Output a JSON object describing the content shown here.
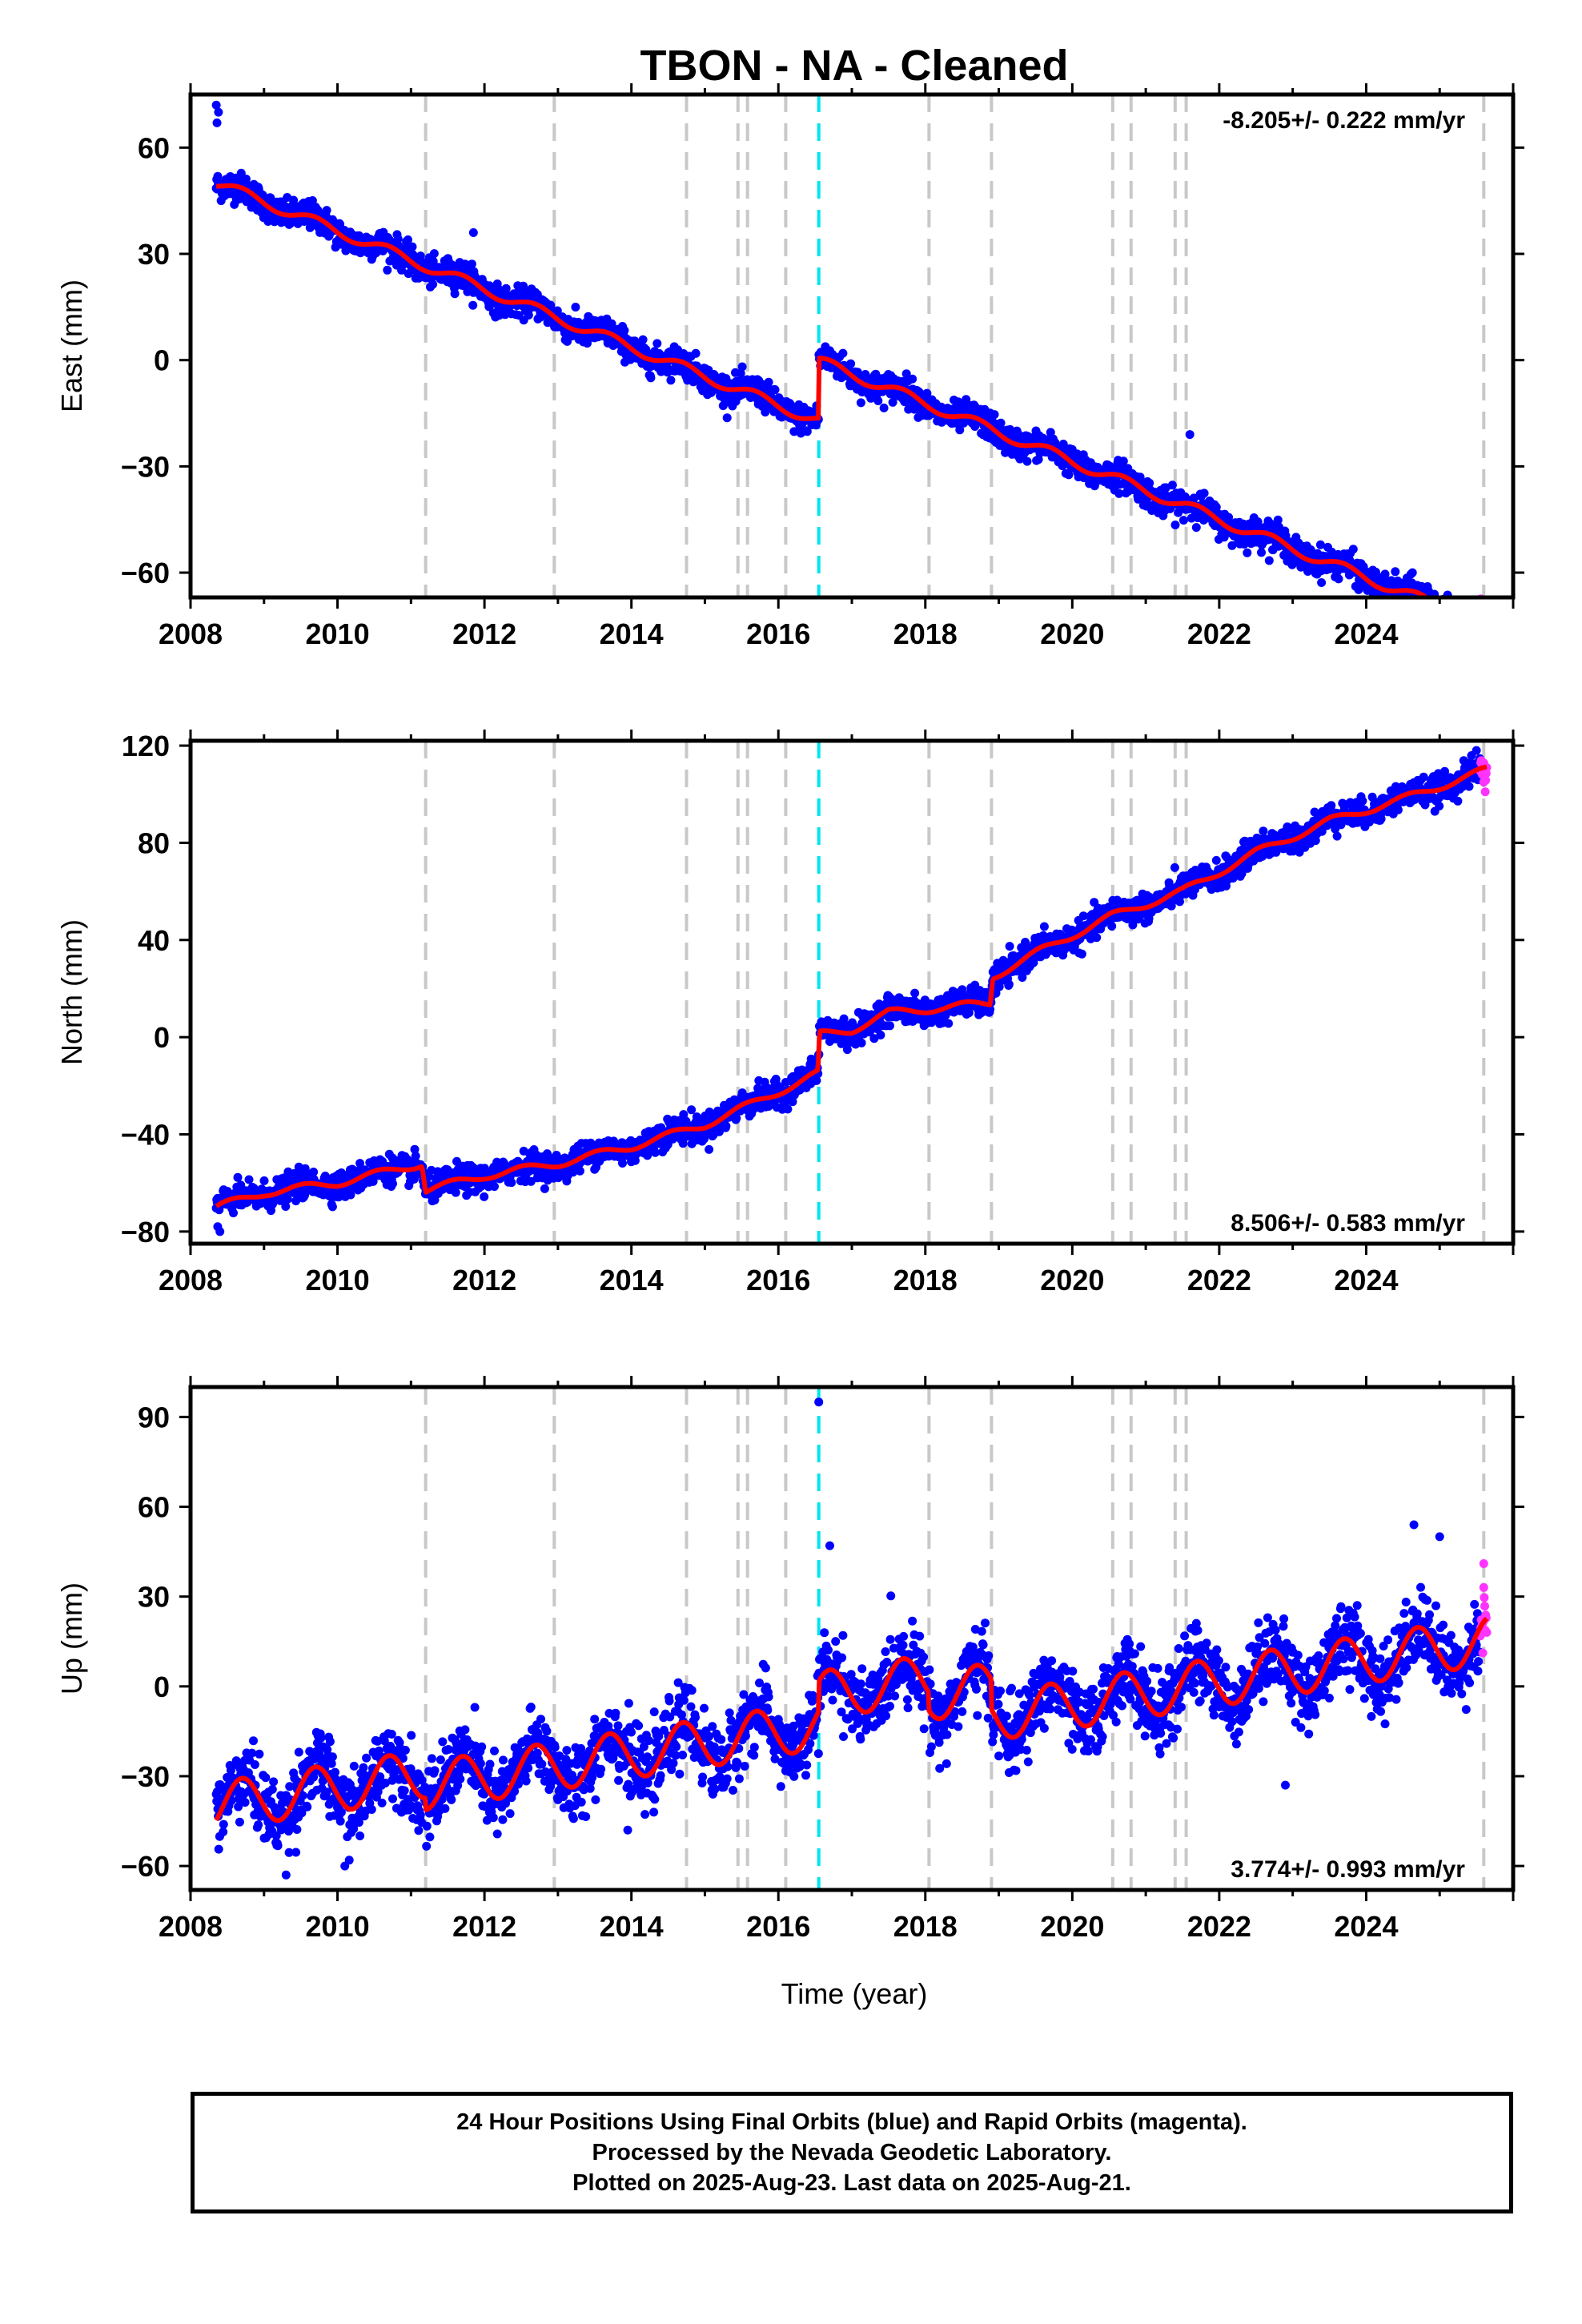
{
  "title": "TBON  - NA - Cleaned",
  "xlabel": "Time (year)",
  "footer": {
    "line1": "24 Hour Positions Using Final Orbits (blue) and Rapid Orbits (magenta).",
    "line2": "Processed by the Nevada Geodetic Laboratory.",
    "line3": "Plotted on 2025-Aug-23. Last data on 2025-Aug-21."
  },
  "colors": {
    "final_orbits": "#0000ff",
    "rapid_orbits": "#ff33ff",
    "model_fit": "#ff0000",
    "event_line": "#c8c8c8",
    "major_event_line": "#00e5ee"
  },
  "chart_data": [
    {
      "type": "scatter",
      "ylabel": "East (mm)",
      "rate_text": "-8.205+/- 0.222 mm/yr",
      "rate_position": "top-right",
      "xlim": [
        2008,
        2026
      ],
      "ylim": [
        -67,
        75
      ],
      "xticks": [
        2008,
        2010,
        2012,
        2014,
        2016,
        2018,
        2020,
        2022,
        2024
      ],
      "yticks": [
        -60,
        -30,
        0,
        30,
        60
      ],
      "grid": false,
      "start": 2008.35,
      "end": 2025.64,
      "trend": {
        "y0": 50,
        "rate": -8.205,
        "amplitude": 1.5,
        "offsets": [
          {
            "t": 2016.55,
            "dy": 17
          }
        ]
      },
      "noise": 2.0,
      "rapid_orbits_from": 2025.55,
      "outliers": [
        [
          2008.35,
          72
        ],
        [
          2008.38,
          70
        ],
        [
          2008.36,
          67
        ],
        [
          2011.85,
          36
        ],
        [
          2021.6,
          -21
        ]
      ],
      "event_lines": [
        2011.2,
        2012.95,
        2014.75,
        2015.45,
        2015.58,
        2016.1,
        2018.05,
        2018.9,
        2020.55,
        2020.8,
        2021.4,
        2021.55,
        2025.6
      ],
      "major_event": 2016.55
    },
    {
      "type": "scatter",
      "ylabel": "North (mm)",
      "rate_text": "8.506+/- 0.583 mm/yr",
      "rate_position": "bottom-right",
      "xlim": [
        2008,
        2026
      ],
      "ylim": [
        -85,
        122
      ],
      "xticks": [
        2008,
        2010,
        2012,
        2014,
        2016,
        2018,
        2020,
        2022,
        2024
      ],
      "yticks": [
        -80,
        -40,
        0,
        40,
        80,
        120
      ],
      "grid": false,
      "start": 2008.35,
      "end": 2025.64,
      "points": [
        [
          2008.35,
          -70
        ],
        [
          2009,
          -64
        ],
        [
          2010,
          -60
        ],
        [
          2011.15,
          -52
        ],
        [
          2011.2,
          -63
        ],
        [
          2012,
          -57
        ],
        [
          2013,
          -52
        ],
        [
          2014,
          -45
        ],
        [
          2015,
          -36
        ],
        [
          2015.6,
          -28
        ],
        [
          2016.54,
          -15
        ],
        [
          2016.56,
          1
        ],
        [
          2017,
          3
        ],
        [
          2017.5,
          10
        ],
        [
          2018.88,
          14
        ],
        [
          2018.92,
          25
        ],
        [
          2019.6,
          36
        ],
        [
          2020.55,
          50
        ],
        [
          2021.5,
          60
        ],
        [
          2022.5,
          76
        ],
        [
          2023.5,
          89
        ],
        [
          2024.5,
          98
        ],
        [
          2025.64,
          110
        ]
      ],
      "amplitude": 1.5,
      "noise": 2.8,
      "rapid_orbits_from": 2025.55,
      "outliers": [
        [
          2008.37,
          -78
        ],
        [
          2008.4,
          -80
        ],
        [
          2025.5,
          118
        ],
        [
          2025.62,
          101
        ],
        [
          2025.6,
          105
        ]
      ],
      "event_lines": [
        2011.2,
        2012.95,
        2014.75,
        2015.45,
        2015.58,
        2016.1,
        2018.05,
        2018.9,
        2020.55,
        2020.8,
        2021.4,
        2021.55,
        2025.6
      ],
      "major_event": 2016.55
    },
    {
      "type": "scatter",
      "ylabel": "Up (mm)",
      "rate_text": "3.774+/- 0.993 mm/yr",
      "rate_position": "bottom-right",
      "xlim": [
        2008,
        2026
      ],
      "ylim": [
        -68,
        100
      ],
      "xticks": [
        2008,
        2010,
        2012,
        2014,
        2016,
        2018,
        2020,
        2022,
        2024
      ],
      "yticks": [
        -60,
        -30,
        0,
        30,
        60,
        90
      ],
      "grid": false,
      "start": 2008.35,
      "end": 2025.64,
      "trend": {
        "y0": -40,
        "rate": 3.774,
        "amplitude": 8,
        "offsets": [
          {
            "t": 2011.2,
            "dy": -4
          },
          {
            "t": 2016.55,
            "dy": 10
          },
          {
            "t": 2018.05,
            "dy": -6
          },
          {
            "t": 2018.9,
            "dy": -10
          }
        ]
      },
      "noise": 6.0,
      "rapid_orbits_from": 2025.55,
      "outliers": [
        [
          2016.55,
          95
        ],
        [
          2016.7,
          47
        ],
        [
          2024.65,
          54
        ],
        [
          2025.0,
          50
        ],
        [
          2022.9,
          -33
        ],
        [
          2009.3,
          -63
        ],
        [
          2010.1,
          -60
        ],
        [
          2013.95,
          -48
        ],
        [
          2025.6,
          41
        ]
      ],
      "event_lines": [
        2011.2,
        2012.95,
        2014.75,
        2015.45,
        2015.58,
        2016.1,
        2018.05,
        2018.9,
        2020.55,
        2020.8,
        2021.4,
        2021.55,
        2025.6
      ],
      "major_event": 2016.55
    }
  ]
}
